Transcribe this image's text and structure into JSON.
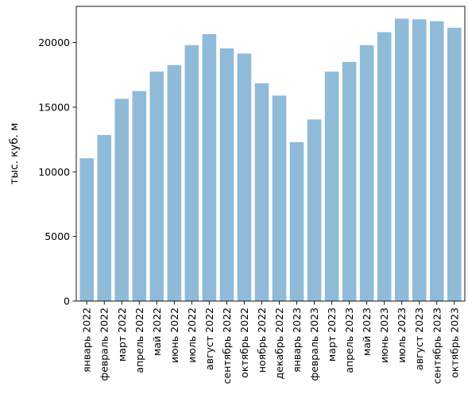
{
  "chart_data": {
    "type": "bar",
    "categories": [
      "январь 2022",
      "февраль 2022",
      "март 2022",
      "апрель 2022",
      "май 2022",
      "июнь 2022",
      "июль 2022",
      "август 2022",
      "сентябрь 2022",
      "октябрь 2022",
      "ноябрь 2022",
      "декабрь 2022",
      "январь 2023",
      "февраль 2023",
      "март 2023",
      "апрель 2023",
      "май 2023",
      "июнь 2023",
      "июль 2023",
      "август 2023",
      "сентябрь 2023",
      "октябрь 2023"
    ],
    "values": [
      11050,
      12850,
      15650,
      16250,
      17750,
      18250,
      19800,
      20650,
      19550,
      19150,
      16850,
      15900,
      12300,
      14050,
      17750,
      18500,
      19800,
      20800,
      21850,
      21800,
      21650,
      21150
    ],
    "title": "",
    "xlabel": "",
    "ylabel": "тыс. куб. м",
    "ylim": [
      0,
      22800
    ],
    "yticks": [
      0,
      5000,
      10000,
      15000,
      20000
    ],
    "ytick_labels": [
      "0",
      "5000",
      "10000",
      "15000",
      "20000"
    ],
    "grid": false,
    "bar_color": "#8fbbd9"
  }
}
